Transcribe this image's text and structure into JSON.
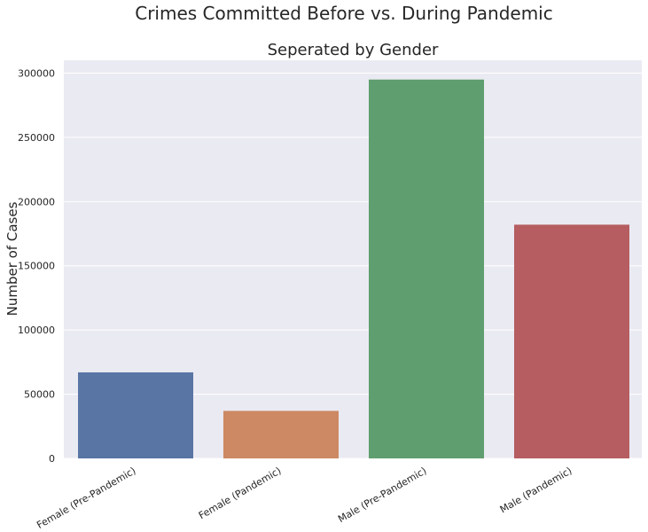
{
  "chart_data": {
    "type": "bar",
    "title": "Crimes Committed Before vs. During Pandemic",
    "subtitle": "Seperated by Gender",
    "xlabel": "",
    "ylabel": "Number of Cases",
    "categories": [
      "Female (Pre-Pandemic)",
      "Female (Pandemic)",
      "Male (Pre-Pandemic)",
      "Male (Pandemic)"
    ],
    "values": [
      67000,
      37000,
      295000,
      182000
    ],
    "colors": [
      "#5875a4",
      "#cc8963",
      "#5f9e6e",
      "#b55d60"
    ],
    "ylim": [
      0,
      310000
    ],
    "yticks": [
      0,
      50000,
      100000,
      150000,
      200000,
      250000,
      300000
    ],
    "ytick_labels": [
      "0",
      "50000",
      "100000",
      "150000",
      "200000",
      "250000",
      "300000"
    ],
    "grid": true,
    "background": "#eaeaf2",
    "grid_color": "#ffffff"
  }
}
